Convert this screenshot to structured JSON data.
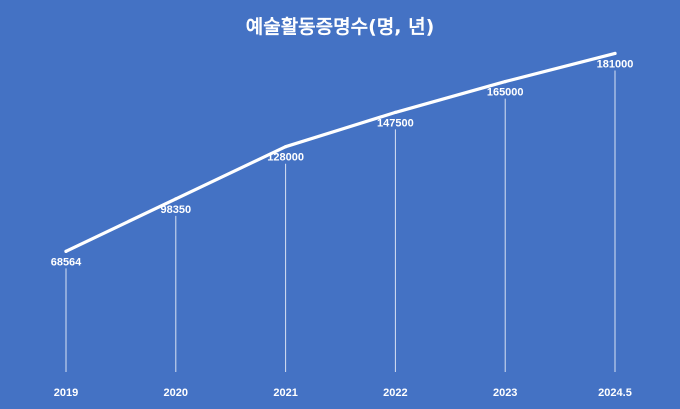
{
  "chart_data": {
    "type": "line",
    "title": "예술활동증명수(명, 년)",
    "categories": [
      "2019",
      "2020",
      "2021",
      "2022",
      "2023",
      "2024.5"
    ],
    "series": [
      {
        "values": [
          68564,
          98350,
          128000,
          147500,
          165000,
          181000
        ]
      }
    ],
    "data_labels": [
      "68564",
      "98350",
      "128000",
      "147500",
      "165000",
      "181000"
    ],
    "ylim": [
      0,
      200000
    ],
    "grid": false,
    "legend": "none",
    "colors": {
      "background": "#4472C4",
      "line": "#FFFFFF",
      "text": "#FFFFFF",
      "drop_line": "#D9E2F3"
    }
  }
}
